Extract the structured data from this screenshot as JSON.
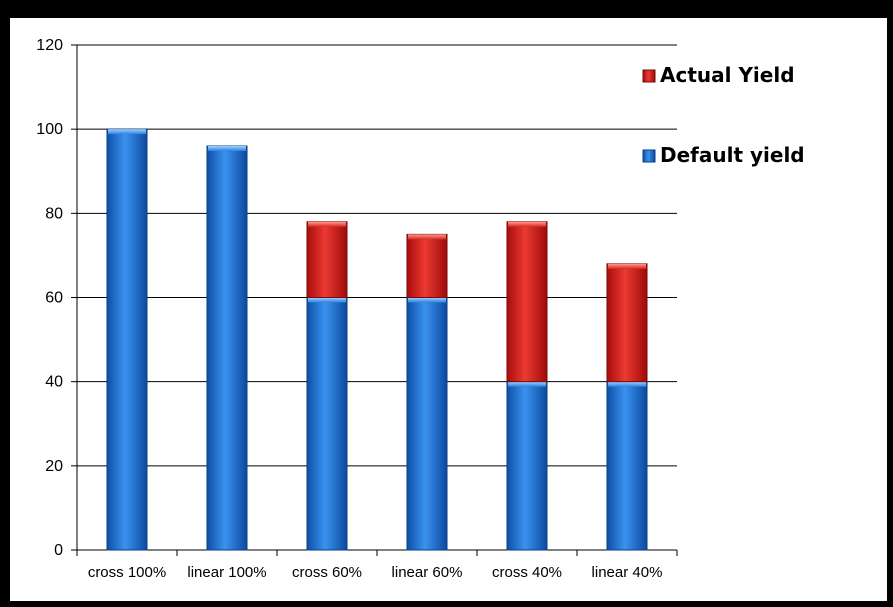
{
  "chart_data": {
    "type": "bar",
    "stacked": true,
    "categories": [
      "cross 100%",
      "linear 100%",
      "cross 60%",
      "linear 60%",
      "cross 40%",
      "linear 40%"
    ],
    "series": [
      {
        "name": "Default yield",
        "values": [
          100,
          96,
          60,
          60,
          40,
          40
        ],
        "color": "#1e72d8"
      },
      {
        "name": "Actual Yield",
        "values": [
          0,
          0,
          18,
          15,
          38,
          28
        ],
        "color": "#d81f1f"
      }
    ],
    "ylim": [
      0,
      120
    ],
    "yticks": [
      0,
      20,
      40,
      60,
      80,
      100,
      120
    ],
    "grid": true,
    "legend": "top-right",
    "legend_order": [
      "Actual Yield",
      "Default yield"
    ]
  }
}
